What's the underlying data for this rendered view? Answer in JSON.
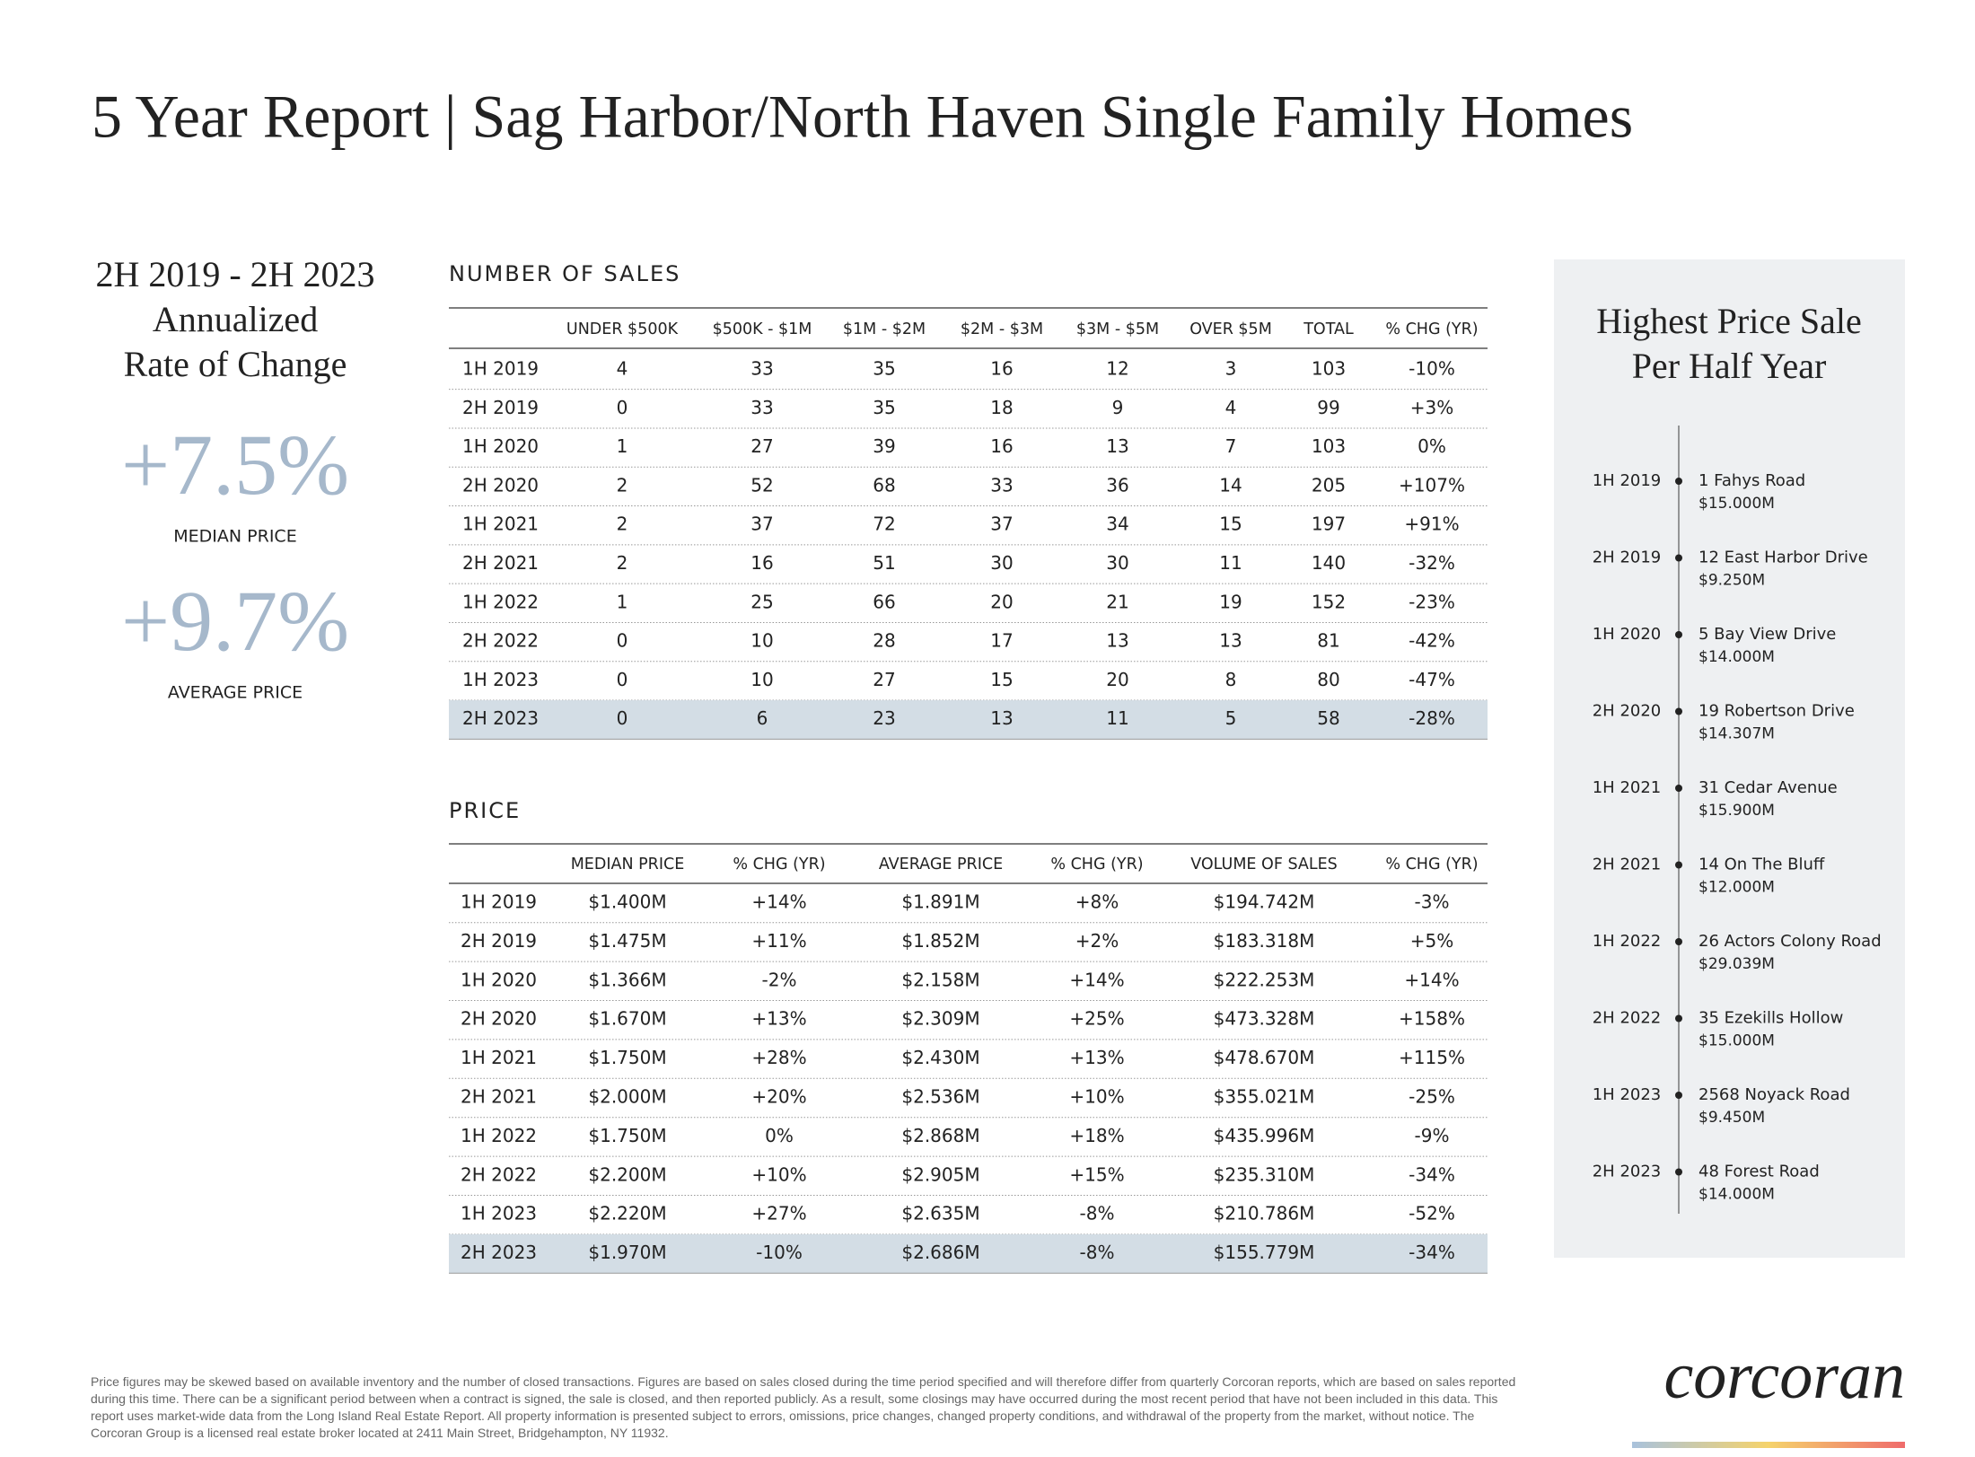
{
  "header": {
    "title": "5 Year Report  |  Sag Harbor/North Haven Single Family Homes"
  },
  "summary": {
    "lines": [
      "2H 2019 - 2H 2023",
      "Annualized",
      "Rate of Change"
    ],
    "stats": [
      {
        "value": "+7.5%",
        "label": "MEDIAN PRICE"
      },
      {
        "value": "+9.7%",
        "label": "AVERAGE PRICE"
      }
    ]
  },
  "sales_table": {
    "title": "NUMBER OF SALES",
    "columns": [
      "UNDER $500K",
      "$500K - $1M",
      "$1M - $2M",
      "$2M - $3M",
      "$3M - $5M",
      "OVER $5M",
      "TOTAL",
      "% CHG (YR)"
    ],
    "rows": [
      [
        "1H 2019",
        "4",
        "33",
        "35",
        "16",
        "12",
        "3",
        "103",
        "-10%"
      ],
      [
        "2H 2019",
        "0",
        "33",
        "35",
        "18",
        "9",
        "4",
        "99",
        "+3%"
      ],
      [
        "1H 2020",
        "1",
        "27",
        "39",
        "16",
        "13",
        "7",
        "103",
        "0%"
      ],
      [
        "2H 2020",
        "2",
        "52",
        "68",
        "33",
        "36",
        "14",
        "205",
        "+107%"
      ],
      [
        "1H 2021",
        "2",
        "37",
        "72",
        "37",
        "34",
        "15",
        "197",
        "+91%"
      ],
      [
        "2H 2021",
        "2",
        "16",
        "51",
        "30",
        "30",
        "11",
        "140",
        "-32%"
      ],
      [
        "1H 2022",
        "1",
        "25",
        "66",
        "20",
        "21",
        "19",
        "152",
        "-23%"
      ],
      [
        "2H 2022",
        "0",
        "10",
        "28",
        "17",
        "13",
        "13",
        "81",
        "-42%"
      ],
      [
        "1H 2023",
        "0",
        "10",
        "27",
        "15",
        "20",
        "8",
        "80",
        "-47%"
      ],
      [
        "2H 2023",
        "0",
        "6",
        "23",
        "13",
        "11",
        "5",
        "58",
        "-28%"
      ]
    ]
  },
  "price_table": {
    "title": "PRICE",
    "columns": [
      "MEDIAN PRICE",
      "% CHG (YR)",
      "AVERAGE PRICE",
      "% CHG (YR)",
      "VOLUME OF SALES",
      "% CHG (YR)"
    ],
    "rows": [
      [
        "1H 2019",
        "$1.400M",
        "+14%",
        "$1.891M",
        "+8%",
        "$194.742M",
        "-3%"
      ],
      [
        "2H 2019",
        "$1.475M",
        "+11%",
        "$1.852M",
        "+2%",
        "$183.318M",
        "+5%"
      ],
      [
        "1H 2020",
        "$1.366M",
        "-2%",
        "$2.158M",
        "+14%",
        "$222.253M",
        "+14%"
      ],
      [
        "2H 2020",
        "$1.670M",
        "+13%",
        "$2.309M",
        "+25%",
        "$473.328M",
        "+158%"
      ],
      [
        "1H 2021",
        "$1.750M",
        "+28%",
        "$2.430M",
        "+13%",
        "$478.670M",
        "+115%"
      ],
      [
        "2H 2021",
        "$2.000M",
        "+20%",
        "$2.536M",
        "+10%",
        "$355.021M",
        "-25%"
      ],
      [
        "1H 2022",
        "$1.750M",
        "0%",
        "$2.868M",
        "+18%",
        "$435.996M",
        "-9%"
      ],
      [
        "2H 2022",
        "$2.200M",
        "+10%",
        "$2.905M",
        "+15%",
        "$235.310M",
        "-34%"
      ],
      [
        "1H 2023",
        "$2.220M",
        "+27%",
        "$2.635M",
        "-8%",
        "$210.786M",
        "-52%"
      ],
      [
        "2H 2023",
        "$1.970M",
        "-10%",
        "$2.686M",
        "-8%",
        "$155.779M",
        "-34%"
      ]
    ]
  },
  "highest_sales": {
    "title_lines": [
      "Highest Price Sale",
      "Per Half Year"
    ],
    "items": [
      {
        "period": "1H 2019",
        "address": "1 Fahys Road",
        "price": "$15.000M"
      },
      {
        "period": "2H 2019",
        "address": "12 East Harbor Drive",
        "price": "$9.250M"
      },
      {
        "period": "1H 2020",
        "address": "5 Bay View Drive",
        "price": "$14.000M"
      },
      {
        "period": "2H 2020",
        "address": "19 Robertson Drive",
        "price": "$14.307M"
      },
      {
        "period": "1H 2021",
        "address": "31 Cedar Avenue",
        "price": "$15.900M"
      },
      {
        "period": "2H 2021",
        "address": "14 On The Bluff",
        "price": "$12.000M"
      },
      {
        "period": "1H 2022",
        "address": "26 Actors Colony Road",
        "price": "$29.039M"
      },
      {
        "period": "2H 2022",
        "address": "35 Ezekills Hollow",
        "price": "$15.000M"
      },
      {
        "period": "1H 2023",
        "address": "2568 Noyack Road",
        "price": "$9.450M"
      },
      {
        "period": "2H 2023",
        "address": "48 Forest Road",
        "price": "$14.000M"
      }
    ]
  },
  "footer": {
    "disclaimer": "Price figures may be skewed based on available inventory and the number of closed transactions. Figures are based on sales closed during the time period specified and will therefore differ from quarterly Corcoran reports, which are based on sales reported during this time. There can be a significant period between when a contract is signed, the sale is closed, and then reported publicly. As a result, some closings may have occurred during the most recent period that have not been included in this data. This report uses market-wide data from the Long Island Real Estate Report. All property information is presented subject to errors, omissions, price changes, changed property conditions, and withdrawal of the property from the market, without notice. The Corcoran Group is a licensed real estate broker located at 2411 Main Street, Bridgehampton, NY 11932.",
    "logo": "corcoran"
  }
}
